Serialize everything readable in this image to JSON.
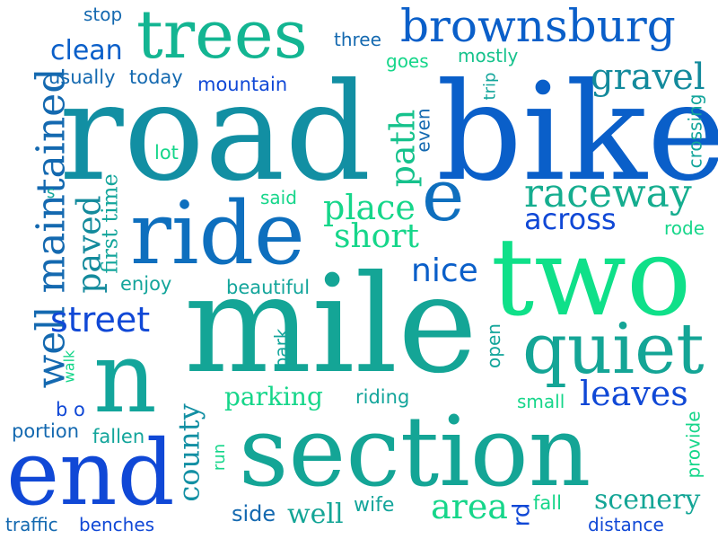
{
  "word_cloud": {
    "words": [
      {
        "text": "road",
        "color": "#128fa3"
      },
      {
        "text": "bike",
        "color": "#0a5fc9"
      },
      {
        "text": "mile",
        "color": "#14a596"
      },
      {
        "text": "two",
        "color": "#0fe089"
      },
      {
        "text": "section",
        "color": "#14a596"
      },
      {
        "text": "ride",
        "color": "#0e6fbe"
      },
      {
        "text": "trees",
        "color": "#13b592"
      },
      {
        "text": "brownsburg",
        "color": "#0a5fc9"
      },
      {
        "text": "n",
        "color": "#13a59b"
      },
      {
        "text": "end",
        "color": "#1048d6"
      },
      {
        "text": "quiet",
        "color": "#14a596"
      },
      {
        "text": "well maintained",
        "color": "#1469b0"
      },
      {
        "text": "e",
        "color": "#0e6fbe"
      },
      {
        "text": "raceway",
        "color": "#15ad8f"
      },
      {
        "text": "gravel",
        "color": "#138a9c"
      },
      {
        "text": "street",
        "color": "#1048d6"
      },
      {
        "text": "leaves",
        "color": "#1048d6"
      },
      {
        "text": "place",
        "color": "#16d68a"
      },
      {
        "text": "short",
        "color": "#16d68a"
      },
      {
        "text": "paved",
        "color": "#138a9c"
      },
      {
        "text": "nice",
        "color": "#0a5fc9"
      },
      {
        "text": "across",
        "color": "#1048d6"
      },
      {
        "text": "path",
        "color": "#16c28c"
      },
      {
        "text": "clean",
        "color": "#0a5fc9"
      },
      {
        "text": "county",
        "color": "#128fa3"
      },
      {
        "text": "area",
        "color": "#16d68a"
      },
      {
        "text": "scenery",
        "color": "#14a596"
      },
      {
        "text": "well",
        "color": "#14a596"
      },
      {
        "text": "parking",
        "color": "#16d68a"
      },
      {
        "text": "first time",
        "color": "#13a59b"
      },
      {
        "text": "mountain",
        "color": "#1048d6"
      },
      {
        "text": "usually",
        "color": "#1469b0"
      },
      {
        "text": "today",
        "color": "#1469b0"
      },
      {
        "text": "three",
        "color": "#1469b0"
      },
      {
        "text": "mostly",
        "color": "#16c28c"
      },
      {
        "text": "goes",
        "color": "#16d68a"
      },
      {
        "text": "stop",
        "color": "#1469b0"
      },
      {
        "text": "trip",
        "color": "#13a59b"
      },
      {
        "text": "even",
        "color": "#1469b0"
      },
      {
        "text": "crossing",
        "color": "#13a59b"
      },
      {
        "text": "lot",
        "color": "#16d68a"
      },
      {
        "text": "said",
        "color": "#16d68a"
      },
      {
        "text": "s",
        "color": "#13a59b"
      },
      {
        "text": "enjoy",
        "color": "#13a59b"
      },
      {
        "text": "beautiful",
        "color": "#13a59b"
      },
      {
        "text": "rode",
        "color": "#16d68a"
      },
      {
        "text": "park",
        "color": "#13a59b"
      },
      {
        "text": "open",
        "color": "#13a59b"
      },
      {
        "text": "walk",
        "color": "#16d68a"
      },
      {
        "text": "riding",
        "color": "#13a59b"
      },
      {
        "text": "small",
        "color": "#16d68a"
      },
      {
        "text": "b o",
        "color": "#1048d6"
      },
      {
        "text": "portion",
        "color": "#1469b0"
      },
      {
        "text": "fallen",
        "color": "#13a59b"
      },
      {
        "text": "run",
        "color": "#16d68a"
      },
      {
        "text": "provide",
        "color": "#16d68a"
      },
      {
        "text": "side",
        "color": "#1469b0"
      },
      {
        "text": "wife",
        "color": "#13a59b"
      },
      {
        "text": "rd",
        "color": "#1048d6"
      },
      {
        "text": "fall",
        "color": "#16d68a"
      },
      {
        "text": "distance",
        "color": "#1048d6"
      },
      {
        "text": "traffic",
        "color": "#1469b0"
      },
      {
        "text": "benches",
        "color": "#1048d6"
      }
    ]
  }
}
